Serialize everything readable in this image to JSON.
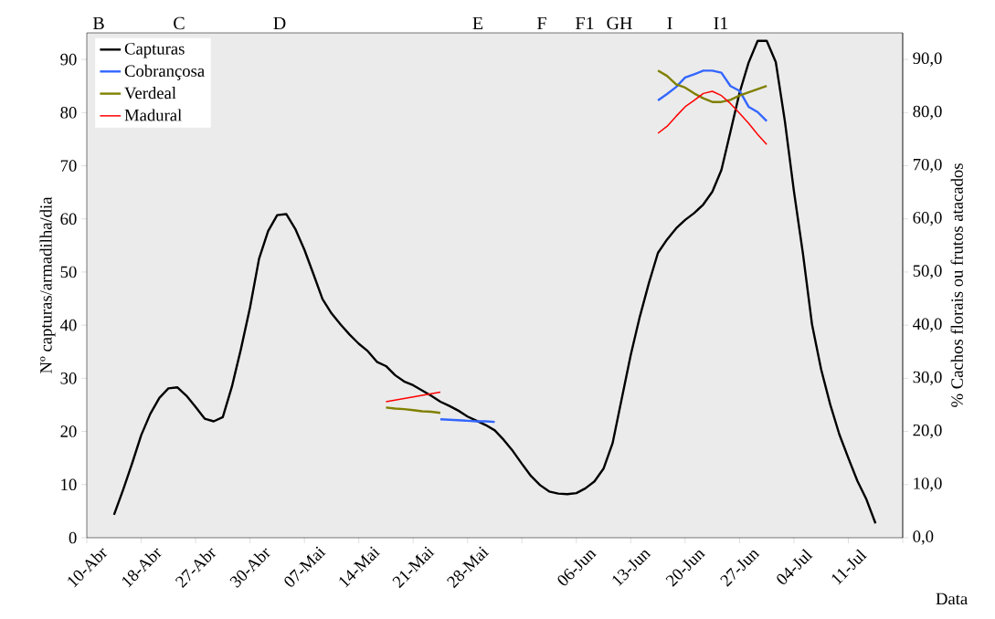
{
  "chart_data": {
    "type": "line",
    "xlabel": "Data",
    "ylabel": "Nº capturas/armadilha/dia",
    "y2label": "% Cachos florais ou frutos atacados",
    "annotations": [
      "B",
      "C",
      "D",
      "E",
      "F",
      "F1",
      "GH",
      "I",
      "I1"
    ],
    "categories": [
      "10-Abr",
      null,
      null,
      null,
      null,
      null,
      "18-Abr",
      null,
      null,
      null,
      null,
      null,
      "27-Abr",
      null,
      null,
      null,
      null,
      null,
      "30-Abr",
      null,
      null,
      null,
      null,
      null,
      "07-Mai",
      null,
      null,
      null,
      null,
      null,
      "14-Mai",
      null,
      null,
      null,
      null,
      null,
      "21-Mai",
      null,
      null,
      null,
      null,
      null,
      "28-Mai",
      null,
      null,
      null,
      null,
      null,
      null,
      null,
      null,
      null,
      null,
      null,
      "06-Jun",
      null,
      null,
      null,
      null,
      null,
      "13-Jun",
      null,
      null,
      null,
      null,
      null,
      "20-Jun",
      null,
      null,
      null,
      null,
      null,
      "27-Jun",
      null,
      null,
      null,
      null,
      null,
      "04-Jul",
      null,
      null,
      null,
      null,
      null,
      "11-Jul",
      null,
      null,
      null,
      null,
      null,
      null
    ],
    "ylim": [
      0,
      95
    ],
    "yticks": [
      0,
      10,
      20,
      30,
      40,
      50,
      60,
      70,
      80,
      90
    ],
    "y2lim": [
      0,
      95
    ],
    "y2ticks": [
      {
        "value": 0,
        "label": "0,0"
      },
      {
        "value": 10,
        "label": "10,0"
      },
      {
        "value": 20,
        "label": "20,0"
      },
      {
        "value": 30,
        "label": "30,0"
      },
      {
        "value": 40,
        "label": "40,0"
      },
      {
        "value": 50,
        "label": "50,0"
      },
      {
        "value": 60,
        "label": "60,0"
      },
      {
        "value": 70,
        "label": "70,0"
      },
      {
        "value": 80,
        "label": "80,0"
      },
      {
        "value": 90,
        "label": "90,0"
      }
    ],
    "legend": "top left",
    "series": [
      {
        "name": "Capturas",
        "color": "#000000",
        "values": [
          null,
          null,
          null,
          4.3,
          9.0,
          14.0,
          19.3,
          23.3,
          26.3,
          28.1,
          28.3,
          26.7,
          24.6,
          22.4,
          21.9,
          22.7,
          28.4,
          35.5,
          43.3,
          52.5,
          57.7,
          60.7,
          60.9,
          58.1,
          54.2,
          49.6,
          44.9,
          42.2,
          40.1,
          38.2,
          36.5,
          35.1,
          33.1,
          32.3,
          30.6,
          29.4,
          28.7,
          27.7,
          26.7,
          25.6,
          24.8,
          23.9,
          22.8,
          22.0,
          21.2,
          20.2,
          18.4,
          16.3,
          13.9,
          11.6,
          9.9,
          8.7,
          8.3,
          8.2,
          8.4,
          9.3,
          10.6,
          13.0,
          17.8,
          26.1,
          34.4,
          41.6,
          47.9,
          53.6,
          56.1,
          58.2,
          59.8,
          61.1,
          62.7,
          65.1,
          69.2,
          76.4,
          83.7,
          89.4,
          93.5,
          93.5,
          89.5,
          78.4,
          65.2,
          53.4,
          40.1,
          31.7,
          25.1,
          19.5,
          15.0,
          10.7,
          7.2,
          2.7,
          null,
          null,
          null
        ]
      },
      {
        "name": "Cobrançosa",
        "color": "#3366ff",
        "axis": "y2",
        "values": [
          null,
          null,
          null,
          null,
          null,
          null,
          null,
          null,
          null,
          null,
          null,
          null,
          null,
          null,
          null,
          null,
          null,
          null,
          null,
          null,
          null,
          null,
          null,
          null,
          null,
          null,
          null,
          null,
          null,
          null,
          null,
          null,
          null,
          null,
          null,
          null,
          null,
          null,
          null,
          22.3,
          22.2,
          22.1,
          22.0,
          21.9,
          21.9,
          21.8,
          null,
          null,
          null,
          null,
          null,
          null,
          null,
          null,
          null,
          null,
          null,
          null,
          null,
          null,
          null,
          null,
          null,
          82.3,
          83.5,
          84.8,
          86.6,
          87.2,
          87.9,
          87.9,
          87.5,
          85.0,
          84.1,
          81.1,
          80.1,
          78.4,
          null,
          null,
          null,
          null,
          null,
          null,
          null,
          null,
          null,
          null,
          null,
          null,
          null,
          null,
          null
        ]
      },
      {
        "name": "Verdeal",
        "color": "#808000",
        "axis": "y2",
        "values": [
          null,
          null,
          null,
          null,
          null,
          null,
          null,
          null,
          null,
          null,
          null,
          null,
          null,
          null,
          null,
          null,
          null,
          null,
          null,
          null,
          null,
          null,
          null,
          null,
          null,
          null,
          null,
          null,
          null,
          null,
          null,
          null,
          null,
          24.5,
          24.3,
          24.2,
          24.0,
          23.8,
          23.7,
          23.5,
          null,
          null,
          null,
          null,
          null,
          null,
          null,
          null,
          null,
          null,
          null,
          null,
          null,
          null,
          null,
          null,
          null,
          null,
          null,
          null,
          null,
          null,
          null,
          87.9,
          86.9,
          85.3,
          84.7,
          83.6,
          82.7,
          82.0,
          82.0,
          82.4,
          83.2,
          83.8,
          84.4,
          85.0,
          null,
          null,
          null,
          null,
          null,
          null,
          null,
          null,
          null,
          null,
          null,
          null,
          null,
          null,
          null
        ]
      },
      {
        "name": "Madural",
        "color": "#ff0000",
        "axis": "y2",
        "values": [
          null,
          null,
          null,
          null,
          null,
          null,
          null,
          null,
          null,
          null,
          null,
          null,
          null,
          null,
          null,
          null,
          null,
          null,
          null,
          null,
          null,
          null,
          null,
          null,
          null,
          null,
          null,
          null,
          null,
          null,
          null,
          null,
          null,
          25.6,
          25.9,
          26.2,
          26.5,
          26.8,
          27.1,
          27.4,
          null,
          null,
          null,
          null,
          null,
          null,
          null,
          null,
          null,
          null,
          null,
          null,
          null,
          null,
          null,
          null,
          null,
          null,
          null,
          null,
          null,
          null,
          null,
          76.1,
          77.4,
          79.3,
          81.1,
          82.3,
          83.6,
          84.0,
          83.2,
          81.7,
          79.9,
          78.0,
          75.9,
          74.0,
          null,
          null,
          null,
          null,
          null,
          null,
          null,
          null,
          null,
          null,
          null,
          null,
          null,
          null,
          null
        ]
      }
    ]
  }
}
